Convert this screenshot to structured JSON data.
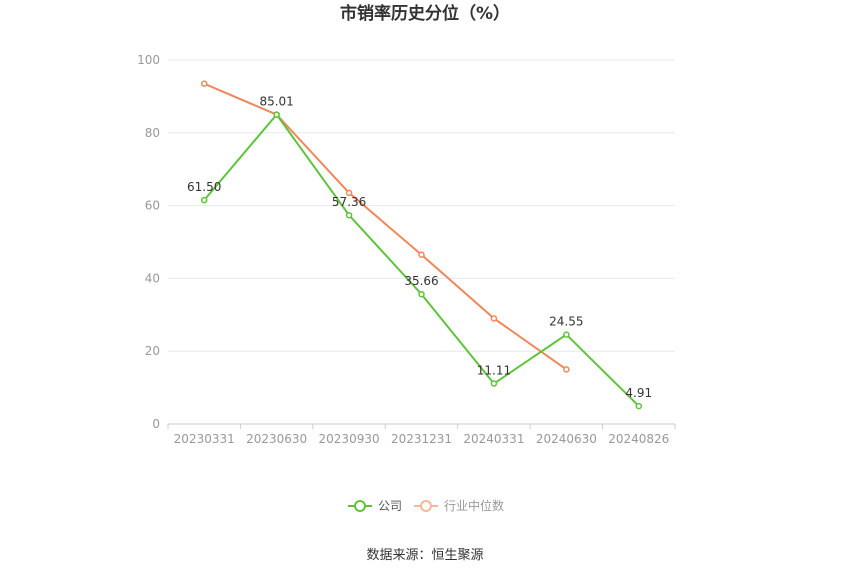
{
  "colors": {
    "company": "#5ec43a",
    "industry": "#f0875a",
    "industry_legend": "#f5b99a",
    "grid": "#e6e8ee",
    "axis": "#cccccc"
  },
  "chart_data": {
    "type": "line",
    "title": "市销率历史分位（%）",
    "categories": [
      "20230331",
      "20230630",
      "20230930",
      "20231231",
      "20240331",
      "20240630",
      "20240826"
    ],
    "ylim": [
      0,
      100
    ],
    "yticks": [
      0,
      20,
      40,
      60,
      80,
      100
    ],
    "yticks_text": [
      "0",
      "20",
      "40",
      "60",
      "80",
      "100"
    ],
    "grid": true,
    "legend_position": "bottom",
    "series": [
      {
        "name": "公司",
        "values": [
          61.5,
          85.01,
          57.36,
          35.66,
          11.11,
          24.55,
          4.91
        ],
        "labels": [
          "61.50",
          "85.01",
          "57.36",
          "35.66",
          "11.11",
          "24.55",
          "4.91"
        ]
      },
      {
        "name": "行业中位数",
        "values": [
          93.5,
          85.0,
          63.5,
          46.5,
          29.0,
          15.0,
          null
        ]
      }
    ]
  },
  "source": "数据来源：恒生聚源"
}
